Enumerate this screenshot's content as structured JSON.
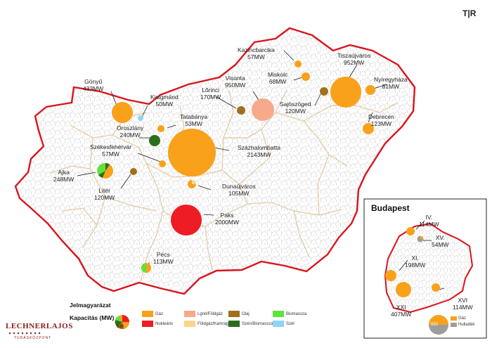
{
  "logo": {
    "corner_mark": "T|R",
    "org": "LECHNERLAJOS",
    "org_sub": "TUDÁSKÖZPONT"
  },
  "colors": {
    "border": "#d9141c",
    "region_line": "#e3cfa8",
    "municipal_line": "#b9b9b9",
    "gas": "#f9a11b",
    "nuclear": "#ee1c24",
    "lignite_gas": "#f7a98c",
    "gas_waste": "#fcd58c",
    "oil": "#a0701f",
    "coal_biomass": "#2c6e1c",
    "biomass": "#5fe33b",
    "wind": "#8fd6f5",
    "waste": "#9d9d9d"
  },
  "plants": [
    {
      "name": "Gönyű",
      "capacity": "433MW",
      "type": "gas"
    },
    {
      "name": "Kisigmánd",
      "capacity": "50MW",
      "type": "wind"
    },
    {
      "name": "Oroszlány",
      "capacity": "240MW",
      "type": "coal_biomass"
    },
    {
      "name": "Tatabánya",
      "capacity": "53MW",
      "type": "gas"
    },
    {
      "name": "Székesfehérvár",
      "capacity": "57MW",
      "type": "gas"
    },
    {
      "name": "Ajka",
      "capacity": "248MW",
      "type": "coal_biomass_mix"
    },
    {
      "name": "Litér",
      "capacity": "120MW",
      "type": "oil"
    },
    {
      "name": "Százhalombatta",
      "capacity": "2143MW",
      "type": "gas"
    },
    {
      "name": "Dunaújváros",
      "capacity": "105MW",
      "type": "gas_waste_mix"
    },
    {
      "name": "Paks",
      "capacity": "2000MW",
      "type": "nuclear"
    },
    {
      "name": "Pécs",
      "capacity": "113MW",
      "type": "biomass_mix"
    },
    {
      "name": "Lőrinci",
      "capacity": "170MW",
      "type": "oil"
    },
    {
      "name": "Visonta",
      "capacity": "950MW",
      "type": "lignite_gas"
    },
    {
      "name": "Kazincbarcika",
      "capacity": "57MW",
      "type": "gas"
    },
    {
      "name": "Miskolc",
      "capacity": "68MW",
      "type": "gas"
    },
    {
      "name": "Sajószöged",
      "capacity": "120MW",
      "type": "oil"
    },
    {
      "name": "Tiszaújváros",
      "capacity": "952MW",
      "type": "gas"
    },
    {
      "name": "Nyíregyháza",
      "capacity": "81MW",
      "type": "gas"
    },
    {
      "name": "Debrecen",
      "capacity": "123MW",
      "type": "gas"
    }
  ],
  "budapest": {
    "title": "Budapest",
    "plants": [
      {
        "name": "IV.",
        "capacity": "114MW",
        "type": "gas"
      },
      {
        "name": "XV.",
        "capacity": "54MW",
        "type": "gas_waste_mix"
      },
      {
        "name": "XI.",
        "capacity": "198MW",
        "type": "gas"
      },
      {
        "name": "XXI",
        "capacity": "407MW",
        "type": "gas"
      },
      {
        "name": "XVI",
        "capacity": "114MW",
        "type": "gas"
      }
    ],
    "legend": {
      "value": "550",
      "gas_label": "Gáz",
      "waste_label": "Hulladék"
    }
  },
  "legend": {
    "title": "Jelmagyarázat",
    "capacity_label": "Kapacitás (MW)",
    "capacity_value": "830",
    "items": [
      {
        "label": "Gáz",
        "key": "gas"
      },
      {
        "label": "Nukleáris",
        "key": "nuclear"
      },
      {
        "label": "Lgnit/Földgáz",
        "key": "lignite_gas"
      },
      {
        "label": "Földgáz/Kamragáz",
        "key": "gas_waste"
      },
      {
        "label": "Olaj",
        "key": "oil"
      },
      {
        "label": "Szén/Biomassza",
        "key": "coal_biomass"
      },
      {
        "label": "Biomassza",
        "key": "biomass"
      },
      {
        "label": "Szél",
        "key": "wind"
      }
    ]
  }
}
